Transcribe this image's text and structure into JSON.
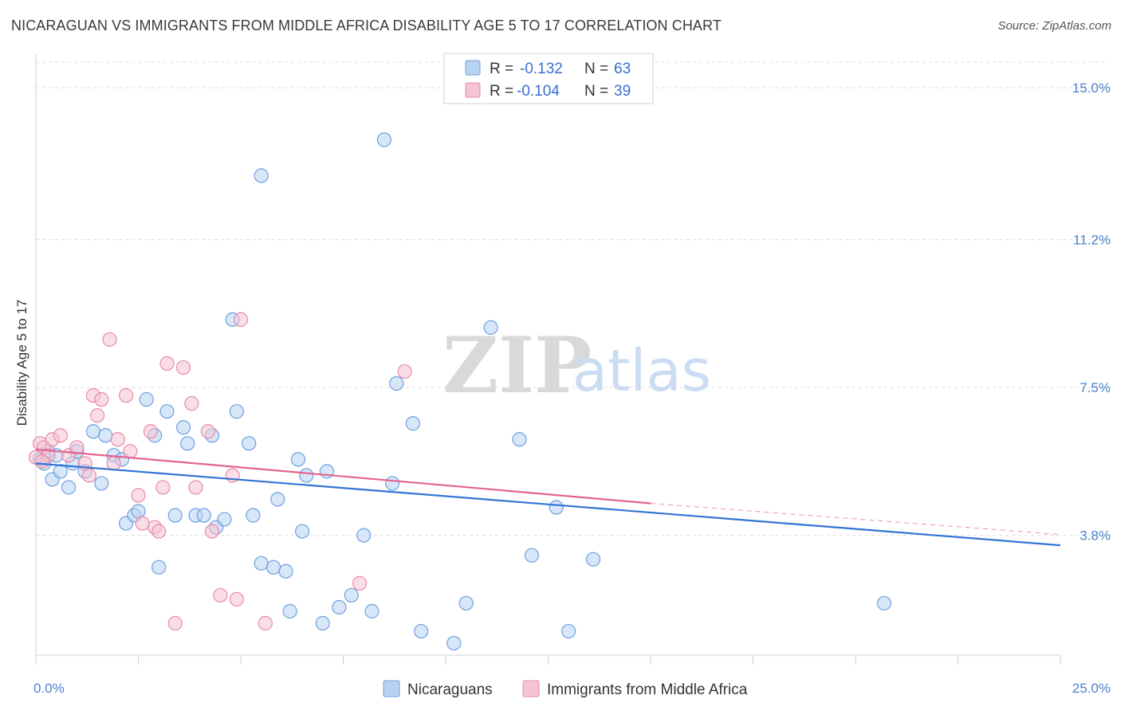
{
  "title": "NICARAGUAN VS IMMIGRANTS FROM MIDDLE AFRICA DISABILITY AGE 5 TO 17 CORRELATION CHART",
  "source": "Source: ZipAtlas.com",
  "colors": {
    "blue_fill": "#b8d3f2",
    "blue_stroke": "#6f9fe0",
    "blue_line": "#3274d4",
    "pink_fill": "#f6c3d4",
    "pink_stroke": "#e88aa8",
    "pink_line": "#e2648e",
    "axis_text": "#4a7fd0",
    "grid": "#dddddd"
  },
  "legend": {
    "rows": [
      {
        "r_label": "R =",
        "r_value": "-0.132",
        "n_label": "N =",
        "n_value": "63"
      },
      {
        "r_label": "R =",
        "r_value": "-0.104",
        "n_label": "N =",
        "n_value": "39"
      }
    ]
  },
  "bottom_legend": [
    "Nicaraguans",
    "Immigrants from Middle Africa"
  ],
  "watermark": {
    "zip": "ZIP",
    "atlas": "atlas"
  },
  "chart_data": {
    "type": "scatter",
    "title": "NICARAGUAN VS IMMIGRANTS FROM MIDDLE AFRICA DISABILITY AGE 5 TO 17 CORRELATION CHART",
    "xlabel": "",
    "ylabel": "Disability Age 5 to 17",
    "xlim": [
      0,
      25
    ],
    "ylim": [
      0.8,
      15.8
    ],
    "x_tick_labels": [
      "0.0%",
      "25.0%"
    ],
    "y_ticks": [
      3.8,
      7.5,
      11.2,
      15.0
    ],
    "y_tick_labels": [
      "3.8%",
      "7.5%",
      "11.2%",
      "15.0%"
    ],
    "grid": true,
    "legend_position": "top-center",
    "series": [
      {
        "name": "Nicaraguans",
        "r": -0.132,
        "n": 63,
        "trend": {
          "x": [
            0,
            25
          ],
          "y": [
            5.6,
            3.55
          ]
        },
        "points": [
          [
            0.1,
            5.7
          ],
          [
            0.2,
            5.6
          ],
          [
            0.3,
            5.9
          ],
          [
            0.4,
            5.2
          ],
          [
            0.5,
            5.8
          ],
          [
            0.6,
            5.4
          ],
          [
            0.8,
            5.0
          ],
          [
            0.9,
            5.6
          ],
          [
            1.0,
            5.9
          ],
          [
            1.2,
            5.4
          ],
          [
            1.4,
            6.4
          ],
          [
            1.6,
            5.1
          ],
          [
            1.7,
            6.3
          ],
          [
            1.9,
            5.8
          ],
          [
            2.1,
            5.7
          ],
          [
            2.2,
            4.1
          ],
          [
            2.4,
            4.3
          ],
          [
            2.5,
            4.4
          ],
          [
            2.7,
            7.2
          ],
          [
            2.9,
            6.3
          ],
          [
            3.0,
            3.0
          ],
          [
            3.2,
            6.9
          ],
          [
            3.4,
            4.3
          ],
          [
            3.6,
            6.5
          ],
          [
            3.7,
            6.1
          ],
          [
            3.9,
            4.3
          ],
          [
            4.1,
            4.3
          ],
          [
            4.3,
            6.3
          ],
          [
            4.4,
            4.0
          ],
          [
            4.6,
            4.2
          ],
          [
            4.8,
            9.2
          ],
          [
            4.9,
            6.9
          ],
          [
            5.2,
            6.1
          ],
          [
            5.3,
            4.3
          ],
          [
            5.5,
            3.1
          ],
          [
            5.5,
            12.8
          ],
          [
            5.8,
            3.0
          ],
          [
            5.9,
            4.7
          ],
          [
            6.1,
            2.9
          ],
          [
            6.2,
            1.9
          ],
          [
            6.4,
            5.7
          ],
          [
            6.5,
            3.9
          ],
          [
            6.6,
            5.3
          ],
          [
            7.0,
            1.6
          ],
          [
            7.1,
            5.4
          ],
          [
            7.4,
            2.0
          ],
          [
            7.7,
            2.3
          ],
          [
            8.0,
            3.8
          ],
          [
            8.2,
            1.9
          ],
          [
            8.5,
            13.7
          ],
          [
            8.7,
            5.1
          ],
          [
            8.8,
            7.6
          ],
          [
            9.2,
            6.6
          ],
          [
            9.4,
            1.4
          ],
          [
            10.2,
            1.1
          ],
          [
            10.5,
            2.1
          ],
          [
            11.1,
            9.0
          ],
          [
            11.8,
            6.2
          ],
          [
            12.1,
            3.3
          ],
          [
            12.7,
            4.5
          ],
          [
            13.0,
            1.4
          ],
          [
            13.6,
            3.2
          ],
          [
            20.7,
            2.1
          ]
        ]
      },
      {
        "name": "Immigrants from Middle Africa",
        "r": -0.104,
        "n": 39,
        "trend": {
          "x": [
            0,
            15
          ],
          "y": [
            5.95,
            4.6
          ]
        },
        "trend_dashed": {
          "x": [
            15,
            25
          ],
          "y": [
            4.6,
            3.82
          ]
        },
        "points": [
          [
            0.1,
            6.1
          ],
          [
            0.2,
            6.0
          ],
          [
            0.3,
            5.8
          ],
          [
            0.4,
            6.2
          ],
          [
            0.6,
            6.3
          ],
          [
            0.8,
            5.8
          ],
          [
            1.0,
            6.0
          ],
          [
            1.2,
            5.6
          ],
          [
            1.3,
            5.3
          ],
          [
            1.4,
            7.3
          ],
          [
            1.5,
            6.8
          ],
          [
            1.6,
            7.2
          ],
          [
            1.8,
            8.7
          ],
          [
            1.9,
            5.6
          ],
          [
            2.0,
            6.2
          ],
          [
            2.2,
            7.3
          ],
          [
            2.3,
            5.9
          ],
          [
            2.5,
            4.8
          ],
          [
            2.6,
            4.1
          ],
          [
            2.8,
            6.4
          ],
          [
            2.9,
            4.0
          ],
          [
            3.0,
            3.9
          ],
          [
            3.1,
            5.0
          ],
          [
            3.2,
            8.1
          ],
          [
            3.4,
            1.6
          ],
          [
            3.6,
            8.0
          ],
          [
            3.8,
            7.1
          ],
          [
            3.9,
            5.0
          ],
          [
            4.2,
            6.4
          ],
          [
            4.3,
            3.9
          ],
          [
            4.5,
            2.3
          ],
          [
            4.8,
            5.3
          ],
          [
            4.9,
            2.2
          ],
          [
            5.0,
            9.2
          ],
          [
            5.6,
            1.6
          ],
          [
            7.9,
            2.6
          ],
          [
            9.0,
            7.9
          ],
          [
            0.0,
            5.75
          ],
          [
            0.15,
            5.65
          ]
        ]
      }
    ]
  }
}
